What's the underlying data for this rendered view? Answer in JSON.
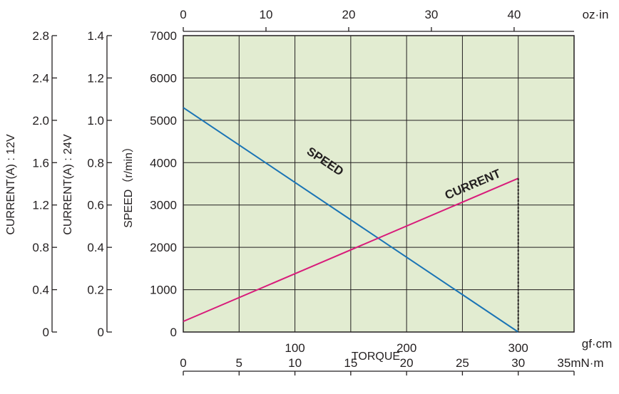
{
  "chart_data": {
    "type": "line",
    "plot_background": "#e2ecd1",
    "grid": true,
    "x_main": {
      "unit": "gf·cm",
      "range": [
        0,
        350
      ],
      "ticks": [
        0,
        100,
        200,
        300
      ],
      "tick_labels": [
        "",
        "100",
        "200",
        "300"
      ]
    },
    "x_top": {
      "unit": "oz·in",
      "ticks": [
        0,
        10,
        20,
        30,
        40
      ],
      "tick_labels": [
        "0",
        "10",
        "20",
        "30",
        "40"
      ]
    },
    "x_bottom": {
      "title": "TORQUE",
      "unit": "35mN·m",
      "ticks": [
        0,
        5,
        10,
        15,
        20,
        25,
        30,
        35
      ],
      "tick_labels": [
        "0",
        "5",
        "10",
        "15",
        "20",
        "25",
        "30",
        ""
      ]
    },
    "y_speed": {
      "title": "SPEED（r/min）",
      "range": [
        0,
        7000
      ],
      "ticks": [
        0,
        1000,
        2000,
        3000,
        4000,
        5000,
        6000,
        7000
      ],
      "tick_labels": [
        "0",
        "1000",
        "2000",
        "3000",
        "4000",
        "5000",
        "6000",
        "7000"
      ]
    },
    "y_current_24v": {
      "title": "CURRENT(A) : 24V",
      "range": [
        0,
        1.4
      ],
      "ticks": [
        0,
        0.2,
        0.4,
        0.6,
        0.8,
        1.0,
        1.2,
        1.4
      ],
      "tick_labels": [
        "0",
        "0.2",
        "0.4",
        "0.6",
        "0.8",
        "1.0",
        "1.2",
        "1.4"
      ]
    },
    "y_current_12v": {
      "title": "CURRENT(A) : 12V",
      "range": [
        0,
        2.8
      ],
      "ticks": [
        0,
        0.4,
        0.8,
        1.2,
        1.6,
        2.0,
        2.4,
        2.8
      ],
      "tick_labels": [
        "0",
        "0.4",
        "0.8",
        "1.2",
        "1.6",
        "2.0",
        "2.4",
        "2.8"
      ]
    },
    "series": [
      {
        "name": "SPEED",
        "color": "#1a74b5",
        "axis": "y_speed",
        "x": [
          0,
          300
        ],
        "y": [
          5300,
          0
        ]
      },
      {
        "name": "CURRENT",
        "color": "#d81b7a",
        "axis": "y_speed",
        "x": [
          0,
          300
        ],
        "y": [
          250,
          3630
        ]
      }
    ],
    "marker_torque": 300
  }
}
